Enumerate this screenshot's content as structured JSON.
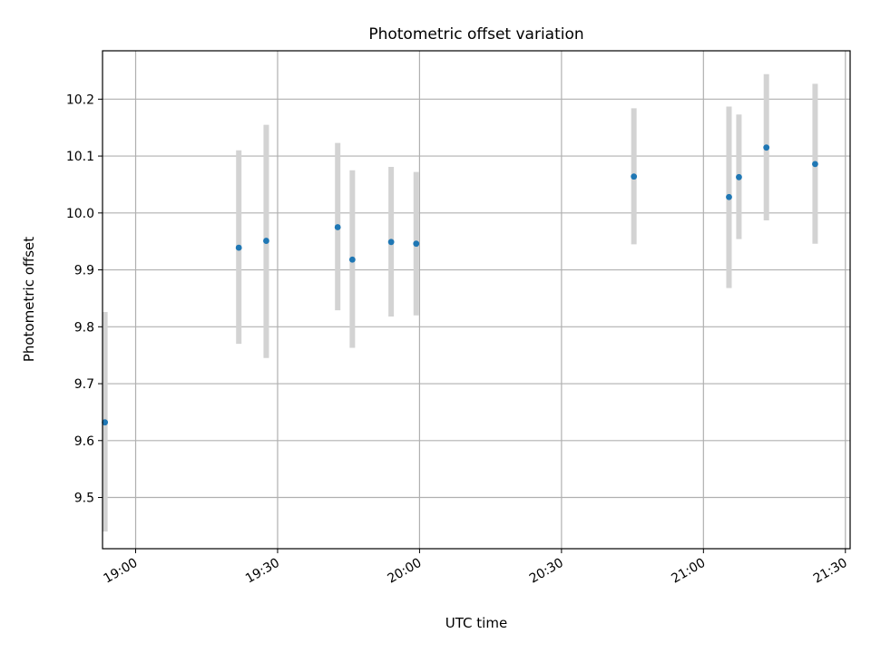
{
  "chart_data": {
    "type": "scatter",
    "title": "Photometric offset variation",
    "xlabel": "UTC time",
    "ylabel": "Photometric offset",
    "grid": true,
    "x_axis_type": "time",
    "xlim": [
      "18:53",
      "21:31"
    ],
    "ylim": [
      9.41,
      10.285
    ],
    "x_ticks": [
      "19:00",
      "19:30",
      "20:00",
      "20:30",
      "21:00",
      "21:30"
    ],
    "y_ticks": [
      "9.5",
      "9.6",
      "9.7",
      "9.8",
      "9.9",
      "10.0",
      "10.1",
      "10.2"
    ],
    "y_tick_values": [
      9.5,
      9.6,
      9.7,
      9.8,
      9.9,
      10.0,
      10.1,
      10.2
    ],
    "point_color": "#1f77b4",
    "errorbar_color": "#d3d3d3",
    "points": [
      {
        "x": "18:53.5",
        "y": 9.632,
        "ylow": 9.44,
        "yhigh": 9.826
      },
      {
        "x": "19:21.8",
        "y": 9.939,
        "ylow": 9.77,
        "yhigh": 10.11
      },
      {
        "x": "19:27.6",
        "y": 9.951,
        "ylow": 9.745,
        "yhigh": 10.155
      },
      {
        "x": "19:42.7",
        "y": 9.975,
        "ylow": 9.829,
        "yhigh": 10.123
      },
      {
        "x": "19:45.8",
        "y": 9.918,
        "ylow": 9.763,
        "yhigh": 10.075
      },
      {
        "x": "19:54.0",
        "y": 9.949,
        "ylow": 9.818,
        "yhigh": 10.081
      },
      {
        "x": "19:59.3",
        "y": 9.946,
        "ylow": 9.82,
        "yhigh": 10.072
      },
      {
        "x": "20:45.3",
        "y": 10.064,
        "ylow": 9.945,
        "yhigh": 10.184
      },
      {
        "x": "21:05.4",
        "y": 10.028,
        "ylow": 9.868,
        "yhigh": 10.187
      },
      {
        "x": "21:07.5",
        "y": 10.063,
        "ylow": 9.954,
        "yhigh": 10.173
      },
      {
        "x": "21:13.3",
        "y": 10.115,
        "ylow": 9.987,
        "yhigh": 10.244
      },
      {
        "x": "21:23.6",
        "y": 10.086,
        "ylow": 9.946,
        "yhigh": 10.227
      }
    ]
  }
}
